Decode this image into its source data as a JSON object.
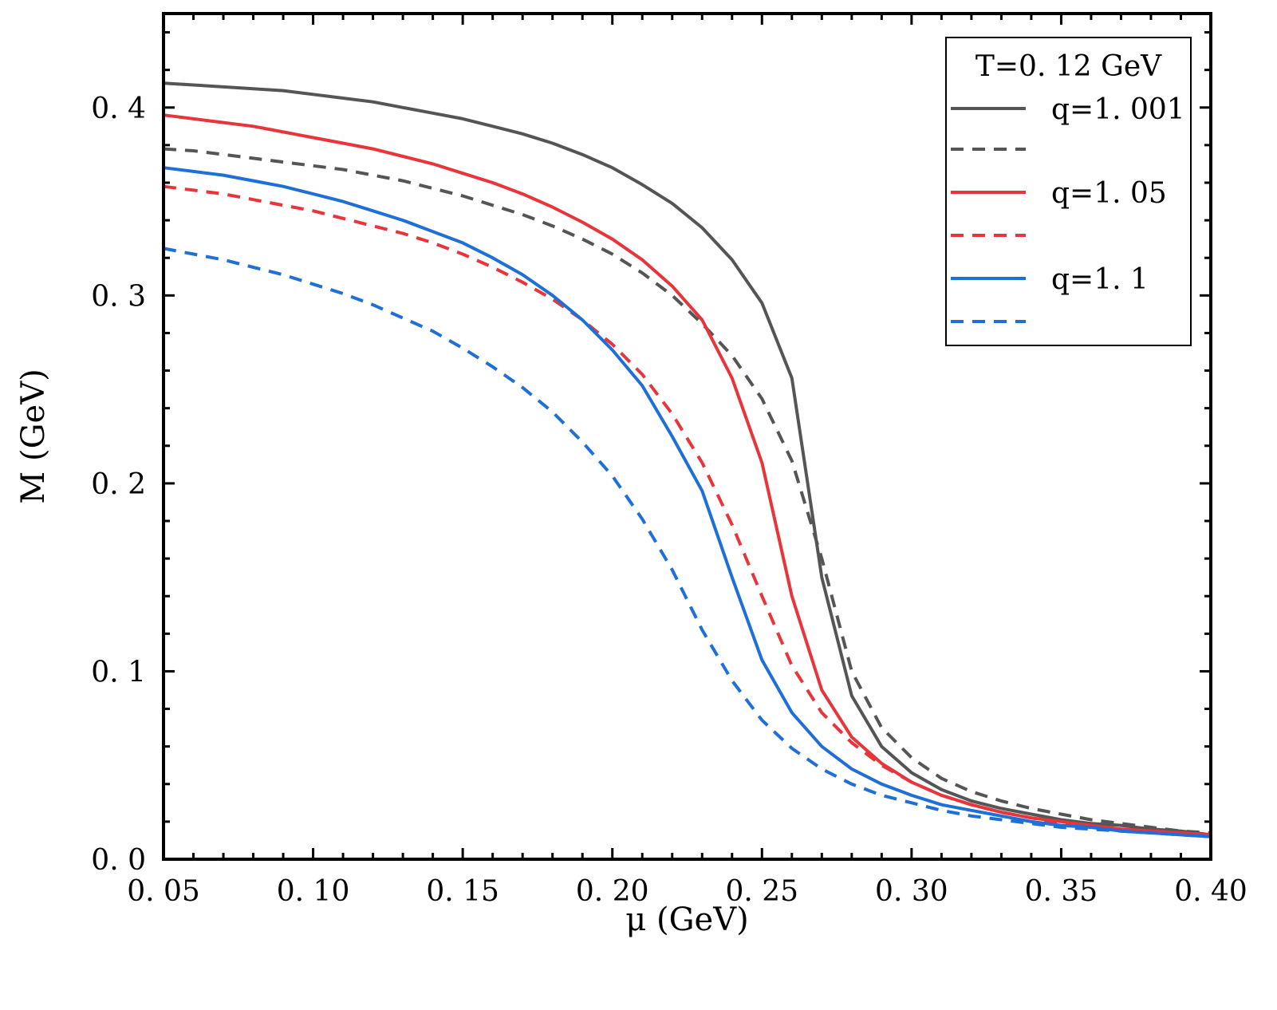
{
  "chart_data": {
    "type": "line",
    "xlabel": "μ (GeV)",
    "ylabel": "M (GeV)",
    "xlim": [
      0.05,
      0.4
    ],
    "ylim": [
      0.0,
      0.45
    ],
    "xticks": [
      0.05,
      0.1,
      0.15,
      0.2,
      0.25,
      0.3,
      0.35,
      0.4
    ],
    "xtick_labels": [
      "0. 05",
      "0. 10",
      "0. 15",
      "0. 20",
      "0. 25",
      "0. 30",
      "0. 35",
      "0. 40"
    ],
    "yticks": [
      0.0,
      0.1,
      0.2,
      0.3,
      0.4
    ],
    "ytick_labels": [
      "0. 0",
      "0. 1",
      "0. 2",
      "0. 3",
      "0. 4"
    ],
    "legend": {
      "title": "T=0. 12 GeV",
      "position": "top-right",
      "entries": [
        "q=1. 001",
        "",
        "q=1. 05",
        "",
        "q=1. 1",
        ""
      ]
    },
    "x": [
      0.05,
      0.06,
      0.07,
      0.08,
      0.09,
      0.1,
      0.11,
      0.12,
      0.13,
      0.14,
      0.15,
      0.16,
      0.17,
      0.18,
      0.19,
      0.2,
      0.21,
      0.22,
      0.23,
      0.24,
      0.25,
      0.26,
      0.27,
      0.28,
      0.29,
      0.3,
      0.31,
      0.32,
      0.33,
      0.34,
      0.35,
      0.36,
      0.37,
      0.38,
      0.39,
      0.4
    ],
    "series": [
      {
        "name": "q=1. 001",
        "color": "#555555",
        "dash": "solid",
        "values": [
          0.413,
          0.412,
          0.411,
          0.41,
          0.409,
          0.407,
          0.405,
          0.403,
          0.4,
          0.397,
          0.394,
          0.39,
          0.386,
          0.381,
          0.375,
          0.368,
          0.359,
          0.349,
          0.336,
          0.319,
          0.296,
          0.256,
          0.15,
          0.087,
          0.06,
          0.046,
          0.037,
          0.031,
          0.027,
          0.024,
          0.021,
          0.019,
          0.018,
          0.016,
          0.015,
          0.013
        ]
      },
      {
        "name": "",
        "color": "#555555",
        "dash": "dashed",
        "values": [
          0.378,
          0.377,
          0.375,
          0.373,
          0.371,
          0.369,
          0.367,
          0.364,
          0.361,
          0.357,
          0.353,
          0.348,
          0.343,
          0.337,
          0.33,
          0.322,
          0.312,
          0.3,
          0.285,
          0.268,
          0.245,
          0.212,
          0.16,
          0.1,
          0.07,
          0.054,
          0.043,
          0.036,
          0.031,
          0.027,
          0.024,
          0.021,
          0.019,
          0.017,
          0.015,
          0.014
        ]
      },
      {
        "name": "q=1. 05",
        "color": "#e8353b",
        "dash": "solid",
        "values": [
          0.396,
          0.394,
          0.392,
          0.39,
          0.387,
          0.384,
          0.381,
          0.378,
          0.374,
          0.37,
          0.365,
          0.36,
          0.354,
          0.347,
          0.339,
          0.33,
          0.319,
          0.305,
          0.287,
          0.256,
          0.211,
          0.14,
          0.09,
          0.065,
          0.051,
          0.041,
          0.034,
          0.029,
          0.025,
          0.022,
          0.02,
          0.018,
          0.016,
          0.015,
          0.014,
          0.013
        ]
      },
      {
        "name": "",
        "color": "#e8353b",
        "dash": "dashed",
        "values": [
          0.358,
          0.356,
          0.354,
          0.351,
          0.348,
          0.345,
          0.341,
          0.337,
          0.333,
          0.328,
          0.322,
          0.315,
          0.307,
          0.298,
          0.287,
          0.274,
          0.258,
          0.237,
          0.211,
          0.178,
          0.14,
          0.103,
          0.078,
          0.062,
          0.05,
          0.041,
          0.034,
          0.029,
          0.025,
          0.022,
          0.019,
          0.017,
          0.016,
          0.015,
          0.014,
          0.013
        ]
      },
      {
        "name": "q=1. 1",
        "color": "#1f6fd8",
        "dash": "solid",
        "values": [
          0.368,
          0.366,
          0.364,
          0.361,
          0.358,
          0.354,
          0.35,
          0.345,
          0.34,
          0.334,
          0.328,
          0.32,
          0.311,
          0.3,
          0.287,
          0.271,
          0.252,
          0.225,
          0.196,
          0.15,
          0.106,
          0.078,
          0.06,
          0.048,
          0.04,
          0.034,
          0.029,
          0.026,
          0.023,
          0.02,
          0.018,
          0.017,
          0.015,
          0.014,
          0.013,
          0.012
        ]
      },
      {
        "name": "",
        "color": "#1f6fd8",
        "dash": "dashed",
        "values": [
          0.325,
          0.322,
          0.319,
          0.315,
          0.311,
          0.306,
          0.301,
          0.295,
          0.288,
          0.281,
          0.272,
          0.262,
          0.251,
          0.238,
          0.222,
          0.204,
          0.181,
          0.154,
          0.122,
          0.095,
          0.074,
          0.059,
          0.048,
          0.04,
          0.034,
          0.03,
          0.026,
          0.023,
          0.021,
          0.019,
          0.017,
          0.016,
          0.015,
          0.014,
          0.013,
          0.012
        ]
      }
    ]
  }
}
